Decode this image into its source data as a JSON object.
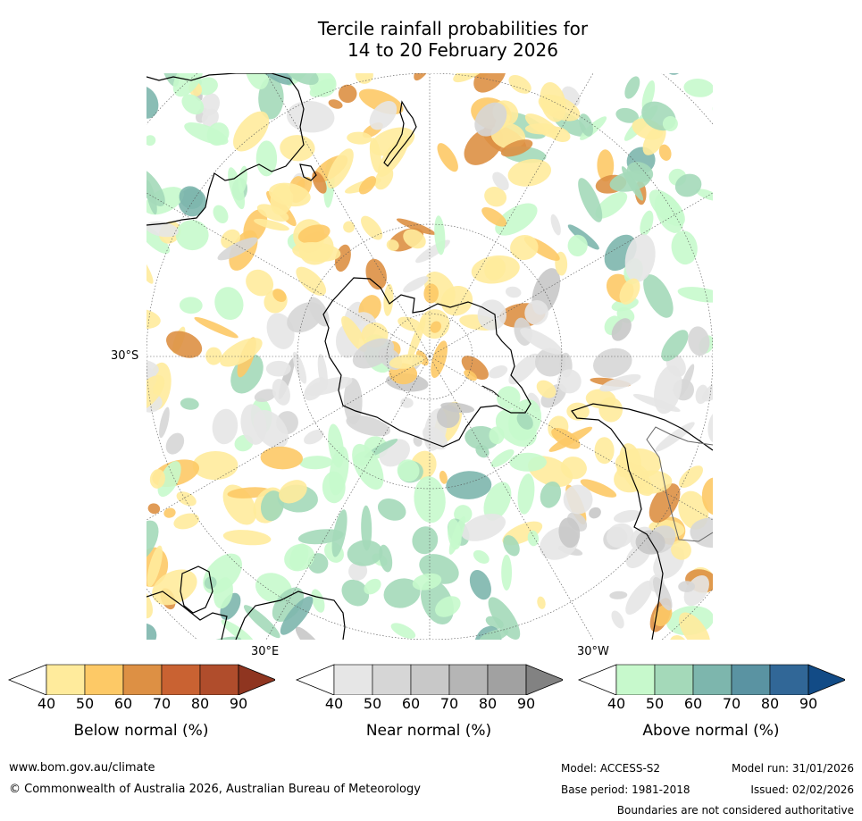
{
  "title": {
    "line1": "Tercile rainfall probabilities for",
    "line2": "14 to 20 February 2026"
  },
  "map": {
    "projection": "south-polar-stereographic",
    "labels": {
      "lat": "30°S",
      "lon_east": "30°E",
      "lon_west": "30°W"
    },
    "colors": {
      "below": [
        "#ffeb9c",
        "#fdc966",
        "#dd9044",
        "#c96232",
        "#b04d2c",
        "#8f3520"
      ],
      "near": [
        "#e6e6e6",
        "#d6d6d6",
        "#c8c8c8",
        "#b5b5b5",
        "#a1a1a1",
        "#828282"
      ],
      "above": [
        "#c7f9cc",
        "#a4d9b9",
        "#7db6ad",
        "#5a93a2",
        "#316797",
        "#124b86"
      ]
    }
  },
  "legends": [
    {
      "id": "below",
      "title": "Below normal (%)",
      "ticks": [
        "40",
        "50",
        "60",
        "70",
        "80",
        "90"
      ]
    },
    {
      "id": "near",
      "title": "Near normal (%)",
      "ticks": [
        "40",
        "50",
        "60",
        "70",
        "80",
        "90"
      ]
    },
    {
      "id": "above",
      "title": "Above normal (%)",
      "ticks": [
        "40",
        "50",
        "60",
        "70",
        "80",
        "90"
      ]
    }
  ],
  "footer": {
    "url": "www.bom.gov.au/climate",
    "copyright": "© Commonwealth of Australia 2026, Australian Bureau of Meteorology",
    "model": "Model: ACCESS-S2",
    "model_run": "Model run: 31/01/2026",
    "base_period": "Base period: 1981-2018",
    "issued": "Issued: 02/02/2026",
    "disclaimer": "Boundaries are not considered authoritative"
  }
}
